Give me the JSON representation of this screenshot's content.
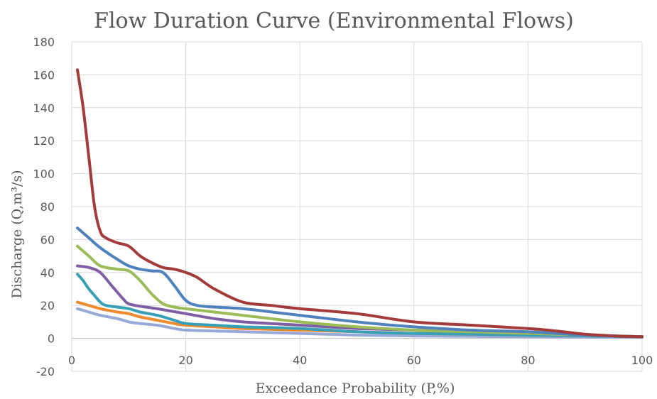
{
  "chart_data": {
    "type": "line",
    "title": "Flow Duration Curve (Environmental Flows)",
    "xlabel": "Exceedance Probability (P,%)",
    "ylabel": "Discharge (Q,m³/s)",
    "xlim": [
      0,
      100
    ],
    "ylim": [
      -20,
      180
    ],
    "xticks": [
      0,
      20,
      40,
      60,
      80,
      100
    ],
    "yticks": [
      -20,
      0,
      20,
      40,
      60,
      80,
      100,
      120,
      140,
      160,
      180
    ],
    "grid": true,
    "series": [
      {
        "color": "#A33B3A",
        "x": [
          1,
          2,
          3,
          4,
          5,
          6,
          8,
          10,
          12,
          14,
          16,
          18,
          20,
          22,
          25,
          30,
          35,
          40,
          50,
          60,
          70,
          80,
          85,
          90,
          95,
          100
        ],
        "y": [
          163,
          140,
          110,
          80,
          65,
          61,
          58,
          56,
          50,
          46,
          43,
          42,
          40,
          37,
          30,
          22,
          20,
          18,
          15,
          10,
          8,
          6,
          4.5,
          2.5,
          1.5,
          1
        ]
      },
      {
        "color": "#4F81BD",
        "x": [
          1,
          3,
          5,
          8,
          10,
          12,
          14,
          16,
          18,
          20,
          22,
          25,
          30,
          40,
          50,
          60,
          70,
          80,
          90,
          100
        ],
        "y": [
          67,
          61,
          55,
          48,
          44,
          42,
          41,
          40,
          32,
          23,
          20,
          19,
          18,
          14,
          10,
          7,
          5,
          4,
          2,
          1
        ]
      },
      {
        "color": "#9BBB59",
        "x": [
          1,
          3,
          5,
          8,
          10,
          12,
          14,
          16,
          18,
          20,
          25,
          30,
          40,
          50,
          60,
          70,
          80,
          90,
          100
        ],
        "y": [
          56,
          50,
          44,
          42,
          41,
          35,
          27,
          21,
          19,
          18,
          16,
          14,
          10,
          7,
          5,
          4,
          3,
          2,
          1
        ]
      },
      {
        "color": "#7F5FA4",
        "x": [
          1,
          3,
          5,
          7,
          9,
          10,
          12,
          15,
          20,
          25,
          30,
          40,
          50,
          60,
          70,
          80,
          90,
          100
        ],
        "y": [
          44,
          43,
          40,
          32,
          24,
          21,
          19.5,
          18,
          15,
          12,
          10,
          8,
          6,
          5,
          4,
          3,
          2,
          1
        ]
      },
      {
        "color": "#38A0B6",
        "x": [
          1,
          2,
          3,
          4,
          5,
          6,
          8,
          10,
          12,
          15,
          18,
          20,
          25,
          30,
          40,
          50,
          60,
          70,
          80,
          90,
          100
        ],
        "y": [
          39,
          35,
          30,
          26,
          22,
          20,
          19,
          18,
          16,
          14,
          11,
          9,
          8,
          7,
          6,
          4,
          3,
          2.5,
          2,
          1.5,
          1
        ]
      },
      {
        "color": "#F08A2E",
        "x": [
          1,
          3,
          5,
          8,
          10,
          12,
          15,
          18,
          20,
          25,
          30,
          40,
          50,
          60,
          70,
          80,
          90,
          100
        ],
        "y": [
          22,
          20,
          18,
          16,
          15,
          13,
          11,
          9,
          8,
          7,
          6,
          5,
          4,
          3,
          2.5,
          2,
          1.5,
          1
        ]
      },
      {
        "color": "#97A9D7",
        "x": [
          1,
          3,
          5,
          8,
          10,
          12,
          15,
          18,
          20,
          25,
          30,
          40,
          50,
          60,
          70,
          80,
          90,
          100
        ],
        "y": [
          18,
          16,
          14,
          12,
          10,
          9,
          8,
          6,
          5,
          4.5,
          4,
          3,
          2,
          1.5,
          1.2,
          1,
          0.8,
          0.6
        ]
      }
    ]
  }
}
